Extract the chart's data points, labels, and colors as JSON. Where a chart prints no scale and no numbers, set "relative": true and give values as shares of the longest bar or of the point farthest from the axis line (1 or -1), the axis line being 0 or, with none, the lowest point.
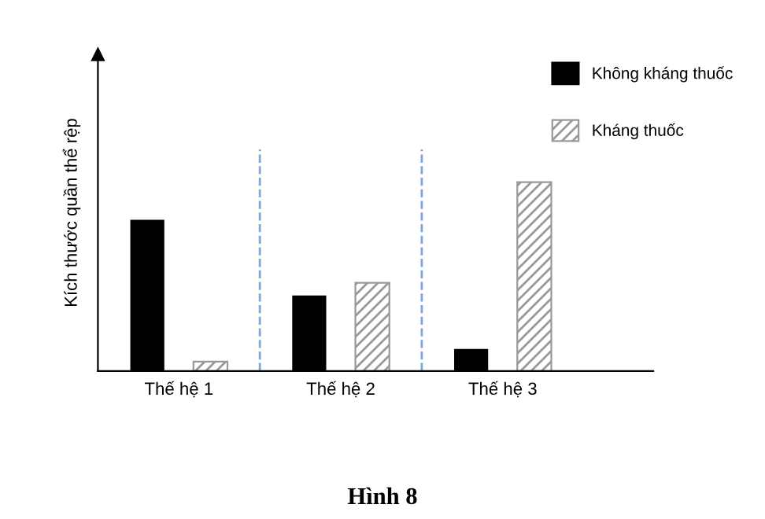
{
  "chart_data": {
    "type": "bar",
    "relative": true,
    "ylabel": "Kích thước quần thể rệp",
    "categories": [
      "Thế hệ 1",
      "Thế hệ 2",
      "Thế hệ 3"
    ],
    "series": [
      {
        "name": "Không kháng thuốc",
        "color": "#000000",
        "values": [
          0.8,
          0.4,
          0.117
        ]
      },
      {
        "name": "Kháng thuốc",
        "color": "#999999",
        "values": [
          0.05,
          0.467,
          1
        ]
      }
    ],
    "legend": "top right",
    "grid": false,
    "annotations": [
      "Hình 8"
    ]
  }
}
